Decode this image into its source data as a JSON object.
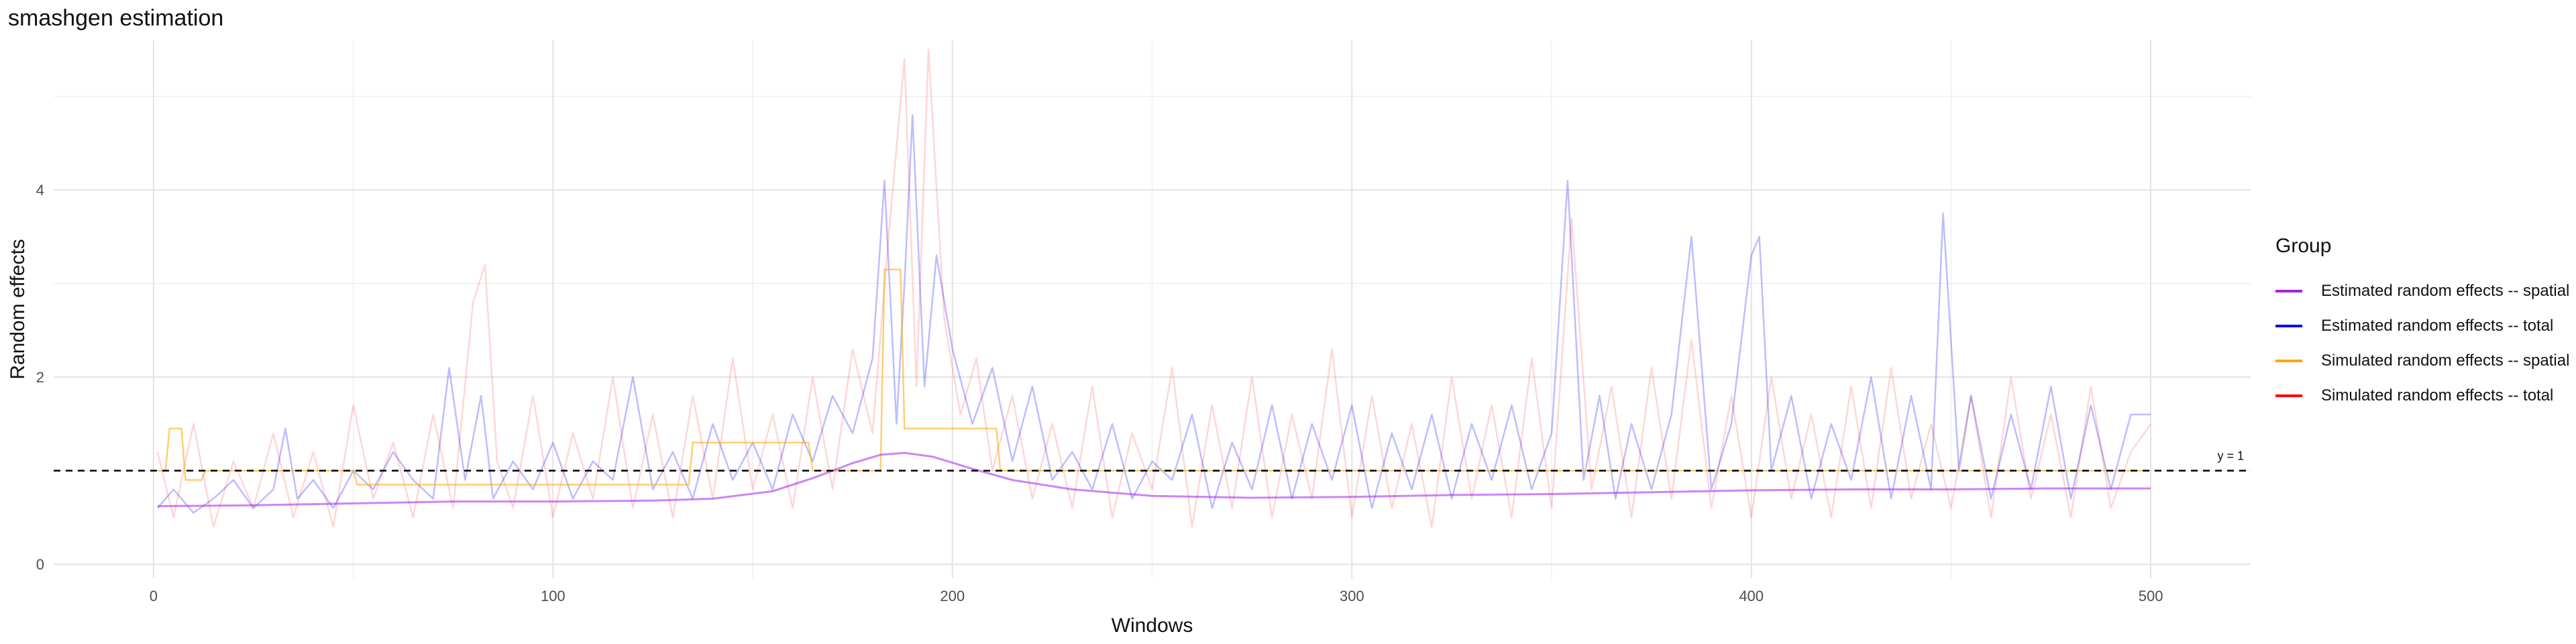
{
  "chart_data": {
    "type": "line",
    "title": "smashgen estimation",
    "xlabel": "Windows",
    "ylabel": "Random effects",
    "xlim": [
      -25,
      525
    ],
    "ylim": [
      -0.15,
      5.6
    ],
    "x_ticks": [
      0,
      100,
      200,
      300,
      400,
      500
    ],
    "y_ticks": [
      0,
      2,
      4
    ],
    "grid": true,
    "legend_title": "Group",
    "legend_position": "right",
    "reference_line": {
      "y": 1,
      "label": "y = 1",
      "style": "dashed",
      "color": "#000000"
    },
    "series": [
      {
        "name": "Estimated random effects -- spatial",
        "color": "#a020f0",
        "x": [
          1,
          25,
          50,
          75,
          100,
          125,
          140,
          155,
          165,
          175,
          182,
          188,
          195,
          205,
          215,
          230,
          250,
          275,
          300,
          325,
          350,
          375,
          400,
          425,
          450,
          475,
          500
        ],
        "y": [
          0.62,
          0.63,
          0.65,
          0.67,
          0.67,
          0.68,
          0.7,
          0.78,
          0.92,
          1.08,
          1.17,
          1.19,
          1.15,
          1.02,
          0.9,
          0.8,
          0.73,
          0.71,
          0.72,
          0.74,
          0.75,
          0.77,
          0.79,
          0.8,
          0.8,
          0.81,
          0.81
        ]
      },
      {
        "name": "Estimated random effects -- total",
        "color": "#0000ff",
        "x": [
          1,
          5,
          10,
          15,
          20,
          25,
          30,
          33,
          36,
          40,
          45,
          50,
          55,
          60,
          65,
          70,
          74,
          78,
          82,
          85,
          90,
          95,
          100,
          105,
          110,
          115,
          120,
          125,
          130,
          135,
          140,
          145,
          150,
          155,
          160,
          165,
          170,
          175,
          180,
          183,
          186,
          188,
          190,
          193,
          196,
          200,
          205,
          210,
          215,
          220,
          225,
          230,
          235,
          240,
          245,
          250,
          255,
          260,
          265,
          270,
          275,
          280,
          285,
          290,
          295,
          300,
          305,
          310,
          315,
          320,
          325,
          330,
          335,
          340,
          345,
          350,
          354,
          358,
          362,
          366,
          370,
          375,
          380,
          385,
          390,
          395,
          400,
          402,
          405,
          410,
          415,
          420,
          425,
          430,
          435,
          440,
          445,
          448,
          452,
          455,
          460,
          465,
          470,
          475,
          480,
          485,
          490,
          495,
          500
        ],
        "y": [
          0.6,
          0.8,
          0.55,
          0.7,
          0.9,
          0.6,
          0.8,
          1.45,
          0.7,
          0.9,
          0.6,
          1.0,
          0.8,
          1.2,
          0.9,
          0.7,
          2.1,
          0.9,
          1.8,
          0.7,
          1.1,
          0.8,
          1.3,
          0.7,
          1.1,
          0.9,
          2.0,
          0.8,
          1.2,
          0.7,
          1.5,
          0.9,
          1.3,
          0.8,
          1.6,
          1.1,
          1.8,
          1.4,
          2.2,
          4.1,
          1.5,
          3.0,
          4.8,
          1.9,
          3.3,
          2.3,
          1.5,
          2.1,
          1.1,
          1.9,
          0.9,
          1.2,
          0.8,
          1.5,
          0.7,
          1.1,
          0.9,
          1.6,
          0.6,
          1.3,
          0.8,
          1.7,
          0.7,
          1.5,
          0.9,
          1.7,
          0.6,
          1.4,
          0.8,
          1.6,
          0.7,
          1.5,
          0.9,
          1.7,
          0.8,
          1.4,
          4.1,
          0.9,
          1.8,
          0.7,
          1.5,
          0.8,
          1.6,
          3.5,
          0.8,
          1.5,
          3.3,
          3.5,
          1.0,
          1.8,
          0.7,
          1.5,
          0.9,
          2.0,
          0.7,
          1.8,
          0.8,
          3.75,
          1.0,
          1.8,
          0.7,
          1.6,
          0.8,
          1.9,
          0.7,
          1.7,
          0.8,
          1.6,
          1.6
        ]
      },
      {
        "name": "Simulated random effects -- spatial",
        "color": "#ffa500",
        "x": [
          1,
          3,
          4,
          7,
          8,
          12,
          13,
          50,
          51,
          134,
          135,
          164,
          165,
          182,
          183,
          187,
          188,
          211,
          212,
          500
        ],
        "y": [
          1.0,
          1.0,
          1.45,
          1.45,
          0.9,
          0.9,
          1.0,
          1.0,
          0.85,
          0.85,
          1.3,
          1.3,
          1.0,
          1.0,
          3.15,
          3.15,
          1.45,
          1.45,
          1.0,
          1.0
        ]
      },
      {
        "name": "Simulated random effects -- total",
        "color": "#ff0000",
        "x": [
          1,
          5,
          10,
          15,
          20,
          25,
          30,
          35,
          40,
          45,
          50,
          55,
          60,
          65,
          70,
          75,
          80,
          83,
          86,
          90,
          95,
          100,
          105,
          110,
          115,
          120,
          125,
          130,
          135,
          140,
          145,
          150,
          155,
          160,
          165,
          170,
          175,
          180,
          184,
          188,
          191,
          194,
          198,
          202,
          206,
          210,
          215,
          220,
          225,
          230,
          235,
          240,
          245,
          250,
          255,
          260,
          265,
          270,
          275,
          280,
          285,
          290,
          295,
          300,
          305,
          310,
          315,
          320,
          325,
          330,
          335,
          340,
          345,
          350,
          355,
          360,
          365,
          370,
          375,
          380,
          385,
          390,
          395,
          400,
          405,
          410,
          415,
          420,
          425,
          430,
          435,
          440,
          445,
          450,
          455,
          460,
          465,
          470,
          475,
          480,
          485,
          490,
          495,
          500
        ],
        "y": [
          1.2,
          0.5,
          1.5,
          0.4,
          1.1,
          0.6,
          1.4,
          0.5,
          1.2,
          0.4,
          1.7,
          0.7,
          1.3,
          0.5,
          1.6,
          0.6,
          2.8,
          3.2,
          1.1,
          0.6,
          1.8,
          0.5,
          1.4,
          0.7,
          2.0,
          0.6,
          1.6,
          0.5,
          1.8,
          0.7,
          2.2,
          0.8,
          1.6,
          0.6,
          2.0,
          0.8,
          2.3,
          1.4,
          3.5,
          5.4,
          1.9,
          5.5,
          2.6,
          1.6,
          2.2,
          1.0,
          1.8,
          0.7,
          1.5,
          0.6,
          1.9,
          0.5,
          1.4,
          0.8,
          2.1,
          0.4,
          1.7,
          0.6,
          2.0,
          0.5,
          1.6,
          0.7,
          2.3,
          0.5,
          1.8,
          0.6,
          1.5,
          0.4,
          2.0,
          0.7,
          1.7,
          0.5,
          2.2,
          0.6,
          3.7,
          0.8,
          1.9,
          0.5,
          2.1,
          0.7,
          2.4,
          0.6,
          1.8,
          0.5,
          2.0,
          0.7,
          1.6,
          0.5,
          1.9,
          0.6,
          2.1,
          0.7,
          1.5,
          0.6,
          1.8,
          0.5,
          2.0,
          0.7,
          1.6,
          0.5,
          1.9,
          0.6,
          1.2,
          1.5
        ]
      }
    ]
  }
}
